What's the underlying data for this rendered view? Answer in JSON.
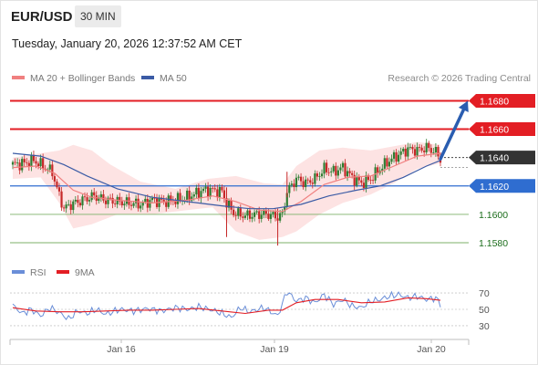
{
  "header": {
    "symbol": "EUR/USD",
    "timeframe": "30 MIN",
    "datetime": "Tuesday, January 20, 2026 12:37:52 AM CET"
  },
  "legend": {
    "ma20_label": "MA 20 + Bollinger Bands",
    "ma50_label": "MA 50",
    "rsi_label": "RSI",
    "ma9_label": "9MA"
  },
  "copyright": "Research © 2026 Trading Central",
  "colors": {
    "candle_up": "#2e7d32",
    "candle_down": "#c62828",
    "resistance": "#e31e24",
    "support": "#2f6dd0",
    "weak_support": "#7cb26a",
    "ma20": "#f08080",
    "ma50": "#3b5ba5",
    "bollinger_fill": "#fde3e3",
    "current_price": "#333333",
    "target_arrow": "#2a5db0",
    "rsi": "#6a8ed8",
    "rsi_ma": "#e31e24"
  },
  "chart_data": [
    {
      "type": "candlestick",
      "symbol": "EUR/USD",
      "interval": "30 MIN",
      "ylim": [
        1.1571,
        1.1688
      ],
      "x_ticks": [
        "Jan 16",
        "Jan 19",
        "Jan 20"
      ],
      "levels": [
        {
          "price": 1.168,
          "label": "1.1680",
          "role": "resistance",
          "style": "box"
        },
        {
          "price": 1.166,
          "label": "1.1660",
          "role": "resistance",
          "style": "box"
        },
        {
          "price": 1.164,
          "label": "1.1640",
          "role": "current",
          "style": "box"
        },
        {
          "price": 1.162,
          "label": "1.1620",
          "role": "support",
          "style": "box"
        },
        {
          "price": 1.16,
          "label": "1.1600",
          "role": "support",
          "style": "text"
        },
        {
          "price": 1.158,
          "label": "1.1580",
          "role": "support",
          "style": "text"
        }
      ],
      "target_arrow": {
        "from": 1.1639,
        "to": 1.168
      },
      "close_path": [
        [
          0,
          1.1635
        ],
        [
          5,
          1.1636
        ],
        [
          9,
          1.1638
        ],
        [
          13,
          1.1634
        ],
        [
          17,
          1.163
        ],
        [
          19,
          1.1618
        ],
        [
          22,
          1.1604
        ],
        [
          25,
          1.1607
        ],
        [
          30,
          1.161
        ],
        [
          35,
          1.1613
        ],
        [
          40,
          1.161
        ],
        [
          45,
          1.1609
        ],
        [
          50,
          1.1608
        ],
        [
          55,
          1.1607
        ],
        [
          60,
          1.161
        ],
        [
          65,
          1.1609
        ],
        [
          70,
          1.161
        ],
        [
          75,
          1.1612
        ],
        [
          78,
          1.1614
        ],
        [
          82,
          1.1617
        ],
        [
          86,
          1.1617
        ],
        [
          90,
          1.1616
        ],
        [
          92,
          1.1608
        ],
        [
          95,
          1.1601
        ],
        [
          100,
          1.1599
        ],
        [
          105,
          1.16
        ],
        [
          110,
          1.16
        ],
        [
          114,
          1.1598
        ],
        [
          116,
          1.16
        ],
        [
          118,
          1.1616
        ],
        [
          122,
          1.1625
        ],
        [
          126,
          1.1622
        ],
        [
          130,
          1.1625
        ],
        [
          134,
          1.1632
        ],
        [
          138,
          1.163
        ],
        [
          142,
          1.1633
        ],
        [
          146,
          1.1626
        ],
        [
          150,
          1.1622
        ],
        [
          154,
          1.1625
        ],
        [
          158,
          1.1632
        ],
        [
          162,
          1.1638
        ],
        [
          166,
          1.1642
        ],
        [
          170,
          1.1646
        ],
        [
          174,
          1.1645
        ],
        [
          178,
          1.1647
        ],
        [
          182,
          1.1644
        ],
        [
          184,
          1.1639
        ]
      ],
      "ma20": [
        [
          0,
          1.1633
        ],
        [
          10,
          1.1634
        ],
        [
          18,
          1.1629
        ],
        [
          26,
          1.1617
        ],
        [
          34,
          1.1612
        ],
        [
          45,
          1.161
        ],
        [
          60,
          1.1608
        ],
        [
          75,
          1.161
        ],
        [
          86,
          1.1613
        ],
        [
          96,
          1.1609
        ],
        [
          106,
          1.1603
        ],
        [
          116,
          1.1602
        ],
        [
          124,
          1.1609
        ],
        [
          134,
          1.1621
        ],
        [
          144,
          1.1626
        ],
        [
          154,
          1.1627
        ],
        [
          164,
          1.1634
        ],
        [
          174,
          1.1641
        ],
        [
          184,
          1.1643
        ]
      ],
      "bollinger_upper": [
        [
          0,
          1.164
        ],
        [
          12,
          1.1643
        ],
        [
          20,
          1.1645
        ],
        [
          26,
          1.1649
        ],
        [
          34,
          1.1645
        ],
        [
          42,
          1.1635
        ],
        [
          55,
          1.1623
        ],
        [
          70,
          1.1618
        ],
        [
          84,
          1.1625
        ],
        [
          96,
          1.1627
        ],
        [
          108,
          1.1622
        ],
        [
          116,
          1.1621
        ],
        [
          122,
          1.1634
        ],
        [
          132,
          1.1645
        ],
        [
          142,
          1.1647
        ],
        [
          154,
          1.1645
        ],
        [
          164,
          1.1648
        ],
        [
          174,
          1.1651
        ],
        [
          184,
          1.1649
        ]
      ],
      "bollinger_lower": [
        [
          0,
          1.1625
        ],
        [
          12,
          1.1626
        ],
        [
          20,
          1.1608
        ],
        [
          26,
          1.159
        ],
        [
          34,
          1.1593
        ],
        [
          45,
          1.16
        ],
        [
          60,
          1.16
        ],
        [
          75,
          1.1603
        ],
        [
          86,
          1.1605
        ],
        [
          96,
          1.1588
        ],
        [
          106,
          1.1582
        ],
        [
          116,
          1.1584
        ],
        [
          122,
          1.1588
        ],
        [
          132,
          1.16
        ],
        [
          142,
          1.1608
        ],
        [
          154,
          1.1614
        ],
        [
          164,
          1.1622
        ],
        [
          174,
          1.1632
        ],
        [
          184,
          1.1636
        ]
      ],
      "ma50": [
        [
          0,
          1.1643
        ],
        [
          12,
          1.1641
        ],
        [
          22,
          1.1635
        ],
        [
          32,
          1.1627
        ],
        [
          45,
          1.1618
        ],
        [
          60,
          1.1612
        ],
        [
          75,
          1.1609
        ],
        [
          90,
          1.1606
        ],
        [
          102,
          1.1604
        ],
        [
          112,
          1.1604
        ],
        [
          124,
          1.1607
        ],
        [
          136,
          1.1613
        ],
        [
          148,
          1.1617
        ],
        [
          158,
          1.162
        ],
        [
          168,
          1.1626
        ],
        [
          178,
          1.1634
        ],
        [
          184,
          1.1638
        ]
      ]
    },
    {
      "type": "line",
      "series": [
        {
          "name": "RSI",
          "values": [
            [
              0,
              55
            ],
            [
              4,
              45
            ],
            [
              8,
              50
            ],
            [
              12,
              42
            ],
            [
              16,
              52
            ],
            [
              20,
              46
            ],
            [
              24,
              38
            ],
            [
              28,
              48
            ],
            [
              32,
              45
            ],
            [
              36,
              50
            ],
            [
              40,
              44
            ],
            [
              46,
              50
            ],
            [
              52,
              48
            ],
            [
              58,
              51
            ],
            [
              64,
              48
            ],
            [
              70,
              52
            ],
            [
              76,
              50
            ],
            [
              80,
              53
            ],
            [
              86,
              49
            ],
            [
              90,
              45
            ],
            [
              94,
              40
            ],
            [
              98,
              52
            ],
            [
              102,
              47
            ],
            [
              108,
              52
            ],
            [
              114,
              42
            ],
            [
              118,
              72
            ],
            [
              122,
              60
            ],
            [
              126,
              64
            ],
            [
              130,
              58
            ],
            [
              134,
              68
            ],
            [
              138,
              56
            ],
            [
              142,
              62
            ],
            [
              146,
              54
            ],
            [
              150,
              52
            ],
            [
              154,
              60
            ],
            [
              158,
              62
            ],
            [
              162,
              66
            ],
            [
              166,
              68
            ],
            [
              170,
              64
            ],
            [
              174,
              66
            ],
            [
              178,
              62
            ],
            [
              182,
              64
            ],
            [
              184,
              56
            ]
          ]
        },
        {
          "name": "9MA",
          "values": [
            [
              0,
              52
            ],
            [
              10,
              48
            ],
            [
              20,
              47
            ],
            [
              30,
              47
            ],
            [
              40,
              48
            ],
            [
              50,
              49
            ],
            [
              60,
              49
            ],
            [
              70,
              50
            ],
            [
              80,
              51
            ],
            [
              90,
              48
            ],
            [
              100,
              45
            ],
            [
              110,
              49
            ],
            [
              116,
              49
            ],
            [
              122,
              58
            ],
            [
              130,
              62
            ],
            [
              140,
              62
            ],
            [
              150,
              58
            ],
            [
              160,
              59
            ],
            [
              170,
              64
            ],
            [
              178,
              63
            ],
            [
              184,
              61
            ]
          ]
        }
      ],
      "y_ticks": [
        "70",
        "50",
        "30"
      ],
      "ylim": [
        21,
        79
      ],
      "reference_lines": [
        70,
        50,
        30
      ]
    }
  ]
}
